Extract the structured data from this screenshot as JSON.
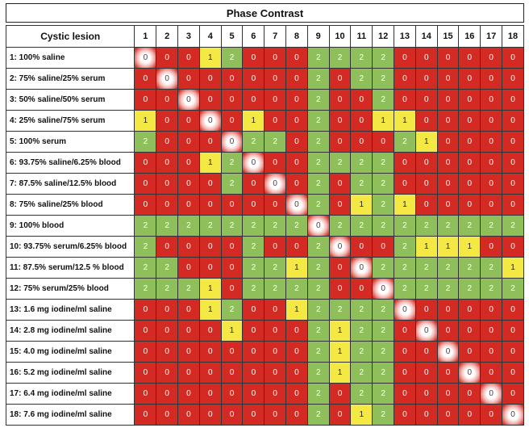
{
  "title": "Phase Contrast",
  "row_header": "Cystic lesion",
  "columns": [
    "1",
    "2",
    "3",
    "4",
    "5",
    "6",
    "7",
    "8",
    "9",
    "10",
    "11",
    "12",
    "13",
    "14",
    "15",
    "16",
    "17",
    "18"
  ],
  "rows": [
    {
      "label": "1: 100% saline",
      "values": [
        0,
        0,
        0,
        1,
        2,
        0,
        0,
        0,
        2,
        2,
        2,
        2,
        0,
        0,
        0,
        0,
        0,
        0
      ]
    },
    {
      "label": "2: 75% saline/25% serum",
      "values": [
        0,
        0,
        0,
        0,
        0,
        0,
        0,
        0,
        2,
        0,
        2,
        2,
        0,
        0,
        0,
        0,
        0,
        0
      ]
    },
    {
      "label": "3: 50% saline/50% serum",
      "values": [
        0,
        0,
        0,
        0,
        0,
        0,
        0,
        0,
        2,
        0,
        0,
        2,
        0,
        0,
        0,
        0,
        0,
        0
      ]
    },
    {
      "label": "4: 25% saline/75% serum",
      "values": [
        1,
        0,
        0,
        0,
        0,
        1,
        0,
        0,
        2,
        0,
        0,
        1,
        1,
        0,
        0,
        0,
        0,
        0
      ]
    },
    {
      "label": "5: 100% serum",
      "values": [
        2,
        0,
        0,
        0,
        0,
        2,
        2,
        0,
        2,
        0,
        0,
        0,
        2,
        1,
        0,
        0,
        0,
        0
      ]
    },
    {
      "label": "6: 93.75% saline/6.25% blood",
      "values": [
        0,
        0,
        0,
        1,
        2,
        0,
        0,
        0,
        2,
        2,
        2,
        2,
        0,
        0,
        0,
        0,
        0,
        0
      ]
    },
    {
      "label": "7: 87.5% saline/12.5% blood",
      "values": [
        0,
        0,
        0,
        0,
        2,
        0,
        0,
        0,
        2,
        0,
        2,
        2,
        0,
        0,
        0,
        0,
        0,
        0
      ]
    },
    {
      "label": "8: 75% saline/25% blood",
      "values": [
        0,
        0,
        0,
        0,
        0,
        0,
        0,
        0,
        2,
        0,
        1,
        2,
        1,
        0,
        0,
        0,
        0,
        0
      ]
    },
    {
      "label": "9: 100% blood",
      "values": [
        2,
        2,
        2,
        2,
        2,
        2,
        2,
        2,
        0,
        2,
        2,
        2,
        2,
        2,
        2,
        2,
        2,
        2
      ]
    },
    {
      "label": "10: 93.75% serum/6.25% blood",
      "values": [
        2,
        0,
        0,
        0,
        0,
        2,
        0,
        0,
        2,
        0,
        0,
        0,
        2,
        1,
        1,
        1,
        0,
        0
      ]
    },
    {
      "label": "11: 87.5% serum/12.5 % blood",
      "values": [
        2,
        2,
        0,
        0,
        0,
        2,
        2,
        1,
        2,
        0,
        0,
        2,
        2,
        2,
        2,
        2,
        2,
        1
      ]
    },
    {
      "label": "12: 75% serum/25% blood",
      "values": [
        2,
        2,
        2,
        1,
        0,
        2,
        2,
        2,
        2,
        0,
        0,
        0,
        2,
        2,
        2,
        2,
        2,
        2
      ]
    },
    {
      "label": "13: 1.6 mg iodine/ml saline",
      "values": [
        0,
        0,
        0,
        1,
        2,
        0,
        0,
        1,
        2,
        2,
        2,
        2,
        0,
        0,
        0,
        0,
        0,
        0
      ]
    },
    {
      "label": "14: 2.8 mg iodine/ml saline",
      "values": [
        0,
        0,
        0,
        0,
        1,
        0,
        0,
        0,
        2,
        1,
        2,
        2,
        0,
        0,
        0,
        0,
        0,
        0
      ]
    },
    {
      "label": "15: 4.0 mg iodine/ml saline",
      "values": [
        0,
        0,
        0,
        0,
        0,
        0,
        0,
        0,
        2,
        1,
        2,
        2,
        0,
        0,
        0,
        0,
        0,
        0
      ]
    },
    {
      "label": "16: 5.2 mg iodine/ml saline",
      "values": [
        0,
        0,
        0,
        0,
        0,
        0,
        0,
        0,
        2,
        1,
        2,
        2,
        0,
        0,
        0,
        0,
        0,
        0
      ]
    },
    {
      "label": "17: 6.4 mg iodine/ml saline",
      "values": [
        0,
        0,
        0,
        0,
        0,
        0,
        0,
        0,
        2,
        0,
        2,
        2,
        0,
        0,
        0,
        0,
        0,
        0
      ]
    },
    {
      "label": "18: 7.6 mg iodine/ml saline",
      "values": [
        0,
        0,
        0,
        0,
        0,
        0,
        0,
        0,
        2,
        0,
        1,
        2,
        0,
        0,
        0,
        0,
        0,
        0
      ]
    }
  ],
  "colors": {
    "0": "#d42a24",
    "1": "#f4e845",
    "2": "#8fbf5a"
  }
}
